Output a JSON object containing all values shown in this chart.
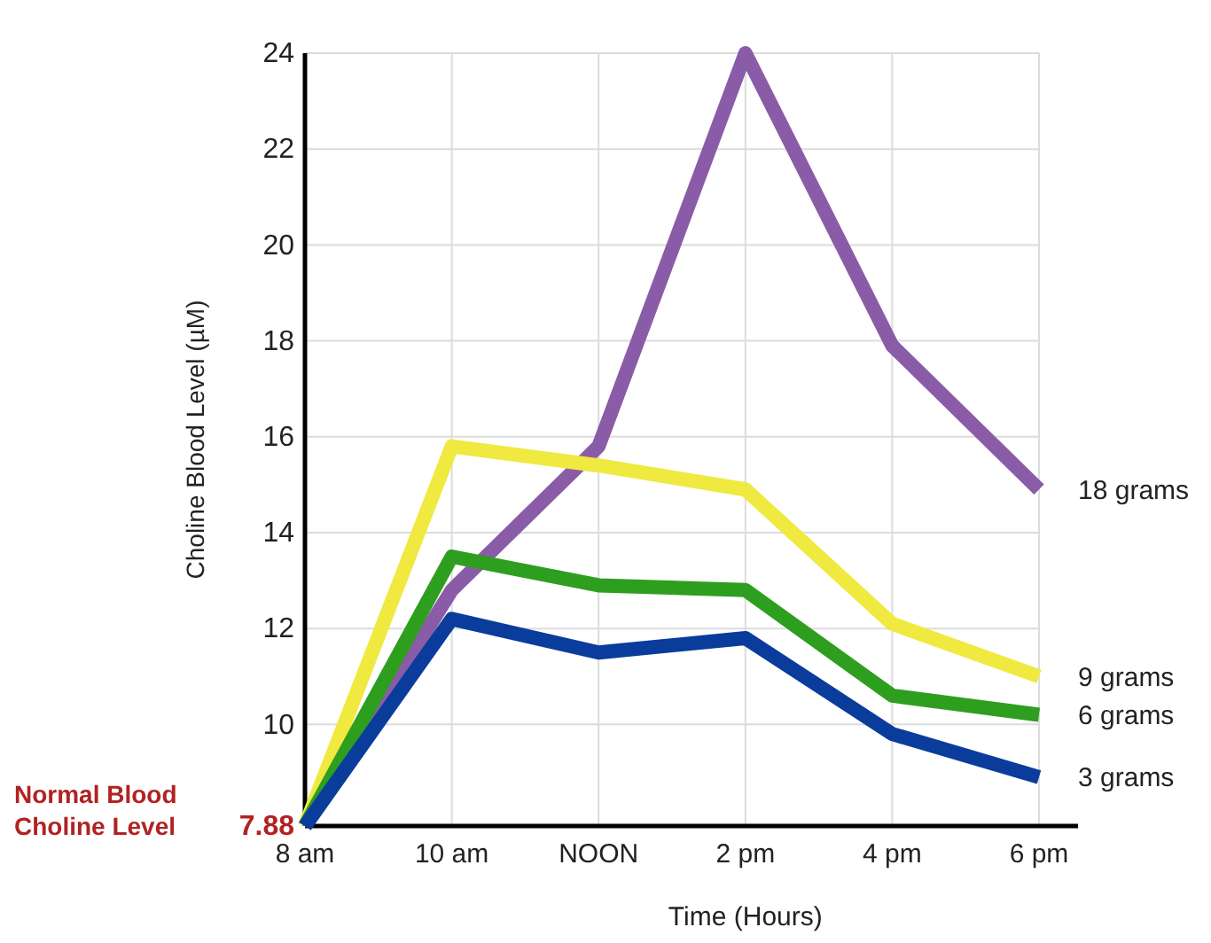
{
  "chart_data": {
    "type": "line",
    "xlabel": "Time (Hours)",
    "ylabel": "Choline Blood Level (µM)",
    "categories": [
      "8 am",
      "10 am",
      "NOON",
      "2 pm",
      "4 pm",
      "6 pm"
    ],
    "series": [
      {
        "name": "18 grams",
        "color": "#8a5ca8",
        "values": [
          7.88,
          12.8,
          15.8,
          24,
          17.9,
          14.9
        ]
      },
      {
        "name": "9 grams",
        "color": "#f0e940",
        "values": [
          7.88,
          15.8,
          15.4,
          14.9,
          12.1,
          11.0
        ]
      },
      {
        "name": "6 grams",
        "color": "#2e9e1e",
        "values": [
          7.88,
          13.5,
          12.9,
          12.8,
          10.6,
          10.2
        ]
      },
      {
        "name": "3 grams",
        "color": "#0a3c9c",
        "values": [
          7.88,
          12.2,
          11.5,
          11.8,
          9.8,
          8.9
        ]
      }
    ],
    "ylim": [
      7.88,
      24
    ],
    "yticks": [
      {
        "value": 7.88,
        "label": "7.88"
      },
      10,
      12,
      14,
      16,
      18,
      20,
      22,
      24
    ],
    "annotations": [
      "Normal Blood Choline Level"
    ],
    "grid": true,
    "marker": "none",
    "line_style": "solid"
  }
}
